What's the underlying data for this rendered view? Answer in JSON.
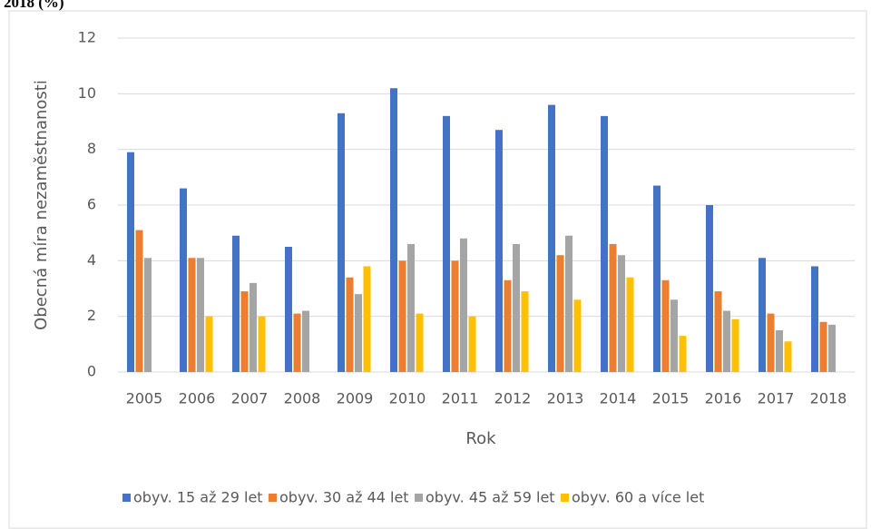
{
  "chart_data": {
    "type": "bar",
    "title": "2018 (%)",
    "x_label": "Rok",
    "y_label": "Obecná míra nezaměstnanosti",
    "categories": [
      "2005",
      "2006",
      "2007",
      "2008",
      "2009",
      "2010",
      "2011",
      "2012",
      "2013",
      "2014",
      "2015",
      "2016",
      "2017",
      "2018"
    ],
    "series": [
      {
        "name": "obyv. 15 až 29 let",
        "color": "#4472c4",
        "values": [
          7.9,
          6.6,
          4.9,
          4.5,
          9.3,
          10.2,
          9.2,
          8.7,
          9.6,
          9.2,
          6.7,
          6.0,
          4.1,
          3.8
        ]
      },
      {
        "name": "obyv. 30 až 44 let",
        "color": "#ed7d31",
        "values": [
          5.1,
          4.1,
          2.9,
          2.1,
          3.4,
          4.0,
          4.0,
          3.3,
          4.2,
          4.6,
          3.3,
          2.9,
          2.1,
          1.8
        ]
      },
      {
        "name": "obyv. 45 až 59 let",
        "color": "#a5a5a5",
        "values": [
          4.1,
          4.1,
          3.2,
          2.2,
          2.8,
          4.6,
          4.8,
          4.6,
          4.9,
          4.2,
          2.6,
          2.2,
          1.5,
          1.7
        ]
      },
      {
        "name": "obyv. 60 a více let",
        "color": "#ffc000",
        "values": [
          null,
          2.0,
          2.0,
          null,
          3.8,
          2.1,
          2.0,
          2.9,
          2.6,
          3.4,
          1.3,
          1.9,
          1.1,
          null
        ]
      }
    ],
    "ylim": [
      0,
      12
    ],
    "yticks": [
      0,
      2,
      4,
      6,
      8,
      10,
      12
    ],
    "grid": true,
    "legend": "bottom"
  }
}
